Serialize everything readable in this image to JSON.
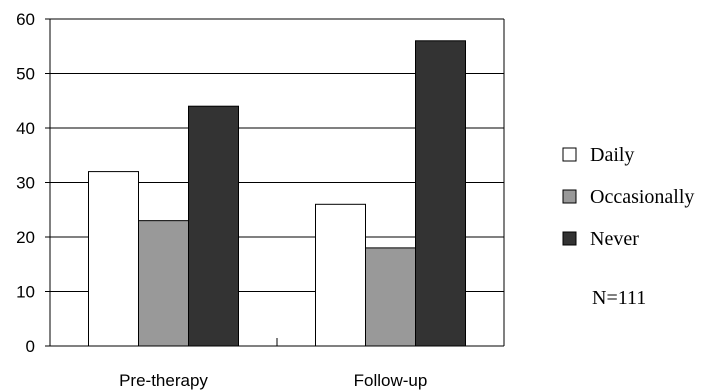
{
  "chart_data": {
    "type": "bar",
    "categories": [
      "Pre-therapy",
      "Follow-up"
    ],
    "series": [
      {
        "name": "Daily",
        "values": [
          32,
          26
        ],
        "color": "#ffffff"
      },
      {
        "name": "Occasionally",
        "values": [
          23,
          18
        ],
        "color": "#999999"
      },
      {
        "name": "Never",
        "values": [
          44,
          56
        ],
        "color": "#333333"
      }
    ],
    "ylim": [
      0,
      60
    ],
    "yticks": [
      "0",
      "10",
      "20",
      "30",
      "40",
      "50",
      "60"
    ],
    "grid": true,
    "legend_position": "right",
    "annotation": "N=111"
  }
}
